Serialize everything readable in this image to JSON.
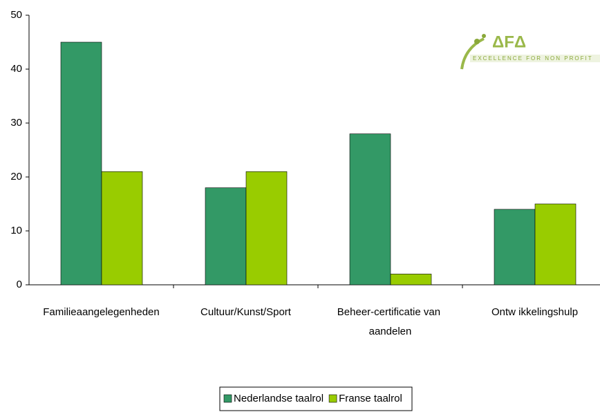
{
  "chart_data": {
    "type": "bar",
    "categories": [
      "Familieaangelegenheden",
      "Cultuur/Kunst/Sport",
      "Beheer-certificatie van aandelen",
      "Ontw ikkelingshulp"
    ],
    "series": [
      {
        "name": "Nederlandse taalrol",
        "color": "#339966",
        "values": [
          45,
          18,
          28,
          14
        ]
      },
      {
        "name": "Franse taalrol",
        "color": "#99cc00",
        "values": [
          21,
          21,
          2,
          15
        ]
      }
    ],
    "ylim": [
      0,
      50
    ],
    "yticks": [
      0,
      10,
      20,
      30,
      40,
      50
    ],
    "grid": false,
    "legend": "bottom",
    "logo": {
      "mark": "ΔFΔ",
      "tagline": "EXCELLENCE FOR NON PROFIT"
    }
  }
}
